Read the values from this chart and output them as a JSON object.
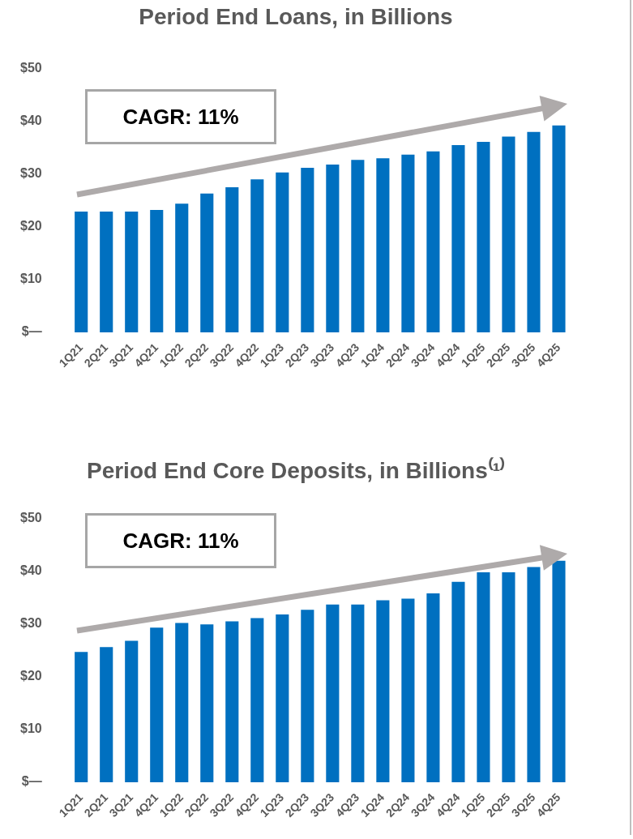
{
  "chart_data": [
    {
      "type": "bar",
      "title": "Period End Loans, in Billions",
      "categories": [
        "1Q21",
        "2Q21",
        "3Q21",
        "4Q21",
        "1Q22",
        "2Q22",
        "3Q22",
        "4Q22",
        "1Q23",
        "2Q23",
        "3Q23",
        "4Q23",
        "1Q24",
        "2Q24",
        "3Q24",
        "4Q24",
        "1Q25",
        "2Q25",
        "3Q25",
        "4Q25"
      ],
      "values": [
        22.9,
        22.9,
        22.9,
        23.2,
        24.4,
        26.3,
        27.5,
        29.0,
        30.3,
        31.2,
        31.8,
        32.7,
        33.0,
        33.7,
        34.3,
        35.5,
        36.1,
        37.1,
        38.0,
        39.2
      ],
      "color": "#0070c0",
      "ylim": [
        0,
        50
      ],
      "yticks": [
        {
          "value": 0,
          "label": "$—"
        },
        {
          "value": 10,
          "label": "$10"
        },
        {
          "value": 20,
          "label": "$20"
        },
        {
          "value": 30,
          "label": "$30"
        },
        {
          "value": 40,
          "label": "$40"
        },
        {
          "value": 50,
          "label": "$50"
        }
      ],
      "annotations": [
        "CAGR: 11%"
      ]
    },
    {
      "type": "bar",
      "title": "Period End Core Deposits, in Billions⁽¹⁾",
      "categories": [
        "1Q21",
        "2Q21",
        "3Q21",
        "4Q21",
        "1Q22",
        "2Q22",
        "3Q22",
        "4Q22",
        "1Q23",
        "2Q23",
        "3Q23",
        "4Q23",
        "1Q24",
        "2Q24",
        "3Q24",
        "4Q24",
        "1Q25",
        "2Q25",
        "3Q25",
        "4Q25"
      ],
      "values": [
        24.7,
        25.6,
        26.8,
        29.3,
        30.2,
        29.9,
        30.5,
        31.1,
        31.8,
        32.7,
        33.7,
        33.7,
        34.5,
        34.8,
        35.8,
        38.0,
        39.8,
        39.8,
        40.8,
        42.0
      ],
      "color": "#0070c0",
      "ylim": [
        0,
        50
      ],
      "yticks": [
        {
          "value": 0,
          "label": "$—"
        },
        {
          "value": 10,
          "label": "$10"
        },
        {
          "value": 20,
          "label": "$20"
        },
        {
          "value": 30,
          "label": "$30"
        },
        {
          "value": 40,
          "label": "$40"
        },
        {
          "value": 50,
          "label": "$50"
        }
      ],
      "annotations": [
        "CAGR: 11%"
      ]
    }
  ]
}
